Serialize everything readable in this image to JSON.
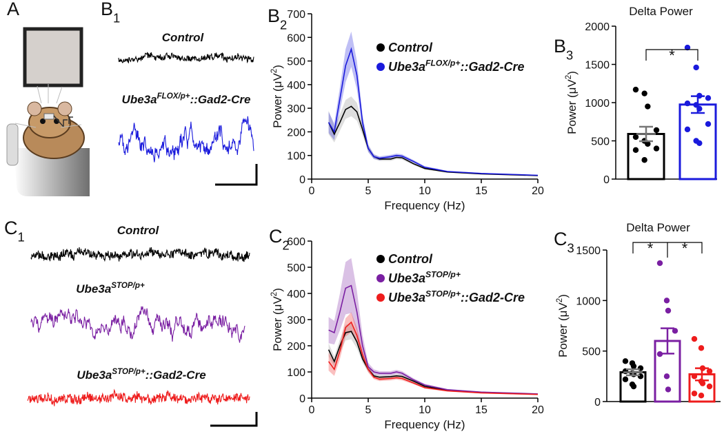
{
  "figure": {
    "panel_labels": [
      {
        "main": "A"
      },
      {
        "main": "B",
        "sub": "1"
      },
      {
        "main": "B",
        "sub": "2"
      },
      {
        "main": "B",
        "sub": "3"
      },
      {
        "main": "C",
        "sub": "1"
      },
      {
        "main": "C",
        "sub": "2"
      },
      {
        "main": "C",
        "sub": "3"
      }
    ],
    "trace_labels": [
      {
        "base": "Control"
      },
      {
        "base": "Ube3a",
        "sup": "FLOX/p+",
        "rest": "::Gad2-Cre"
      },
      {
        "base": "Control"
      },
      {
        "base": "Ube3a",
        "sup": "STOP/p+"
      },
      {
        "base": "Ube3a",
        "sup": "STOP/p+",
        "rest": "::Gad2-Cre"
      }
    ]
  },
  "chart_data": [
    {
      "type": "line",
      "xlabel": "Frequency (Hz)",
      "ylabel": {
        "base": "Power (μV",
        "sup": "2",
        "rest": ")"
      },
      "x": [
        1.5,
        2,
        2.5,
        3,
        3.5,
        4,
        4.5,
        5,
        5.5,
        6,
        7,
        7.5,
        8,
        9,
        10,
        12,
        15,
        20
      ],
      "series": [
        {
          "name": {
            "base": "Control"
          },
          "color": "#000000",
          "values": [
            240,
            190,
            240,
            295,
            308,
            285,
            210,
            130,
            95,
            85,
            85,
            92,
            90,
            65,
            45,
            30,
            22,
            15
          ],
          "error": [
            50,
            35,
            35,
            40,
            42,
            38,
            25,
            15,
            10,
            8,
            8,
            8,
            8,
            6,
            5,
            3,
            2,
            2
          ]
        },
        {
          "name": {
            "base": "Ube3a",
            "sup": "FLOX/p+",
            "rest": "::Gad2-Cre"
          },
          "color": "#1a1adc",
          "values": [
            240,
            200,
            340,
            480,
            550,
            440,
            240,
            130,
            95,
            88,
            95,
            100,
            97,
            75,
            50,
            32,
            24,
            16
          ],
          "error": [
            45,
            35,
            50,
            70,
            75,
            60,
            30,
            15,
            10,
            8,
            8,
            8,
            8,
            6,
            5,
            3,
            2,
            2
          ]
        }
      ],
      "xlim": [
        0,
        20
      ],
      "xticks": [
        0,
        5,
        10,
        15,
        20
      ],
      "ylim": [
        0,
        700
      ],
      "yticks": [
        0,
        100,
        200,
        300,
        400,
        500,
        600,
        700
      ]
    },
    {
      "type": "bar",
      "title": "Delta Power",
      "ylabel": {
        "base": "Power (μV",
        "sup": "2",
        "rest": ")"
      },
      "categories": [
        null,
        null
      ],
      "colors": [
        "#000000",
        "#1a1adc"
      ],
      "values": [
        590,
        975
      ],
      "errors": [
        95,
        110
      ],
      "points": [
        [
          1170,
          1120,
          950,
          640,
          550,
          500,
          460,
          400,
          380,
          250
        ],
        [
          1720,
          1460,
          1090,
          1060,
          990,
          970,
          920,
          720,
          650,
          500,
          470
        ]
      ],
      "annotations": [
        "*"
      ],
      "ylim": [
        0,
        2000
      ],
      "yticks": [
        0,
        500,
        1000,
        1500,
        2000
      ]
    },
    {
      "type": "line",
      "xlabel": "Frequency (Hz)",
      "ylabel": {
        "base": "Power (μV",
        "sup": "2",
        "rest": ")"
      },
      "x": [
        1.5,
        2,
        2.5,
        3,
        3.5,
        4,
        4.5,
        5,
        5.5,
        6,
        7,
        7.5,
        8,
        9,
        10,
        12,
        15,
        20
      ],
      "series": [
        {
          "name": {
            "base": "Control"
          },
          "color": "#000000",
          "values": [
            185,
            140,
            200,
            250,
            255,
            215,
            150,
            110,
            85,
            80,
            82,
            85,
            83,
            65,
            45,
            30,
            22,
            15
          ],
          "error": [
            25,
            20,
            25,
            30,
            30,
            25,
            15,
            10,
            8,
            7,
            7,
            7,
            7,
            5,
            4,
            3,
            2,
            2
          ]
        },
        {
          "name": {
            "base": "Ube3a",
            "sup": "STOP/p+"
          },
          "color": "#7a1fa2",
          "values": [
            260,
            250,
            330,
            420,
            430,
            330,
            200,
            120,
            100,
            95,
            95,
            100,
            95,
            70,
            50,
            32,
            23,
            16
          ],
          "error": [
            50,
            45,
            70,
            100,
            105,
            80,
            40,
            15,
            10,
            8,
            8,
            8,
            8,
            6,
            5,
            3,
            2,
            2
          ]
        },
        {
          "name": {
            "base": "Ube3a",
            "sup": "STOP/p+",
            "rest": "::Gad2-Cre"
          },
          "color": "#ee1c1c",
          "values": [
            140,
            110,
            180,
            270,
            290,
            240,
            165,
            110,
            80,
            72,
            75,
            78,
            75,
            58,
            40,
            28,
            20,
            14
          ],
          "error": [
            35,
            25,
            30,
            35,
            38,
            30,
            20,
            12,
            8,
            7,
            7,
            7,
            7,
            5,
            4,
            3,
            2,
            2
          ]
        }
      ],
      "xlim": [
        0,
        20
      ],
      "xticks": [
        0,
        5,
        10,
        15,
        20
      ],
      "ylim": [
        0,
        600
      ],
      "yticks": [
        0,
        100,
        200,
        300,
        400,
        500,
        600
      ]
    },
    {
      "type": "bar",
      "title": "Delta Power",
      "ylabel": {
        "base": "Power (μV",
        "sup": "2",
        "rest": ")"
      },
      "categories": [
        null,
        null,
        null
      ],
      "colors": [
        "#000000",
        "#7a1fa2",
        "#ee1c1c"
      ],
      "values": [
        290,
        600,
        270
      ],
      "errors": [
        30,
        125,
        60
      ],
      "points": [
        [
          400,
          380,
          350,
          330,
          300,
          280,
          270,
          250,
          220,
          170,
          150
        ],
        [
          1370,
          1000,
          900,
          700,
          470,
          250,
          120
        ],
        [
          620,
          530,
          330,
          300,
          250,
          200,
          180,
          150,
          80,
          60
        ]
      ],
      "annotations": [
        "*",
        "*"
      ],
      "ylim": [
        0,
        1500
      ],
      "yticks": [
        0,
        500,
        1000,
        1500
      ]
    }
  ]
}
